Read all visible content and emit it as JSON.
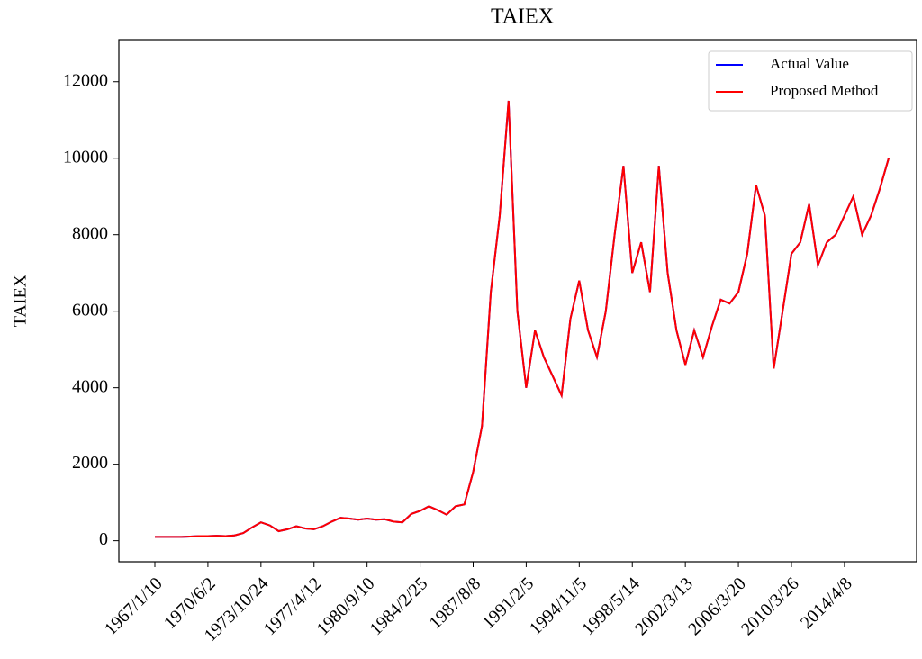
{
  "chart_data": {
    "type": "line",
    "title": "TAIEX",
    "y_label": "TAIEX",
    "categories": [
      "1967/1/10",
      null,
      null,
      null,
      null,
      null,
      "1970/6/2",
      null,
      null,
      null,
      null,
      null,
      "1973/10/24",
      null,
      null,
      null,
      null,
      null,
      "1977/4/12",
      null,
      null,
      null,
      null,
      null,
      "1980/9/10",
      null,
      null,
      null,
      null,
      null,
      "1984/2/25",
      null,
      null,
      null,
      null,
      null,
      "1987/8/8",
      null,
      null,
      null,
      null,
      null,
      "1991/2/5",
      null,
      null,
      null,
      null,
      null,
      "1994/11/5",
      null,
      null,
      null,
      null,
      null,
      "1998/5/14",
      null,
      null,
      null,
      null,
      null,
      "2002/3/13",
      null,
      null,
      null,
      null,
      null,
      "2006/3/20",
      null,
      null,
      null,
      null,
      null,
      "2010/3/26",
      null,
      null,
      null,
      null,
      null,
      "2014/4/8",
      null,
      null,
      null,
      null,
      null
    ],
    "series": [
      {
        "name": "Actual Value",
        "color": "#0000ff",
        "values": [
          100,
          100,
          100,
          100,
          110,
          120,
          120,
          130,
          120,
          140,
          200,
          350,
          480,
          400,
          250,
          300,
          380,
          320,
          300,
          380,
          500,
          600,
          580,
          550,
          580,
          550,
          560,
          500,
          480,
          700,
          780,
          900,
          800,
          680,
          900,
          950,
          1800,
          3000,
          6500,
          8500,
          11500,
          6000,
          4000,
          5500,
          4800,
          4300,
          3800,
          5800,
          6800,
          5500,
          4800,
          6000,
          8000,
          9800,
          7000,
          7800,
          6500,
          9800,
          7000,
          5500,
          4600,
          5500,
          4800,
          5600,
          6300,
          6200,
          6500,
          7500,
          9300,
          8500,
          4500,
          6000,
          7500,
          7800,
          8800,
          7200,
          7800,
          8000,
          8500,
          9000,
          8000,
          8500,
          9200,
          10000
        ]
      },
      {
        "name": "Proposed Method",
        "color": "#ff0000",
        "values": [
          100,
          100,
          100,
          100,
          110,
          120,
          120,
          130,
          120,
          140,
          200,
          350,
          480,
          400,
          250,
          300,
          380,
          320,
          300,
          380,
          500,
          600,
          580,
          550,
          580,
          550,
          560,
          500,
          480,
          700,
          780,
          900,
          800,
          680,
          900,
          950,
          1800,
          3000,
          6500,
          8500,
          11500,
          6000,
          4000,
          5500,
          4800,
          4300,
          3800,
          5800,
          6800,
          5500,
          4800,
          6000,
          8000,
          9800,
          7000,
          7800,
          6500,
          9800,
          7000,
          5500,
          4600,
          5500,
          4800,
          5600,
          6300,
          6200,
          6500,
          7500,
          9300,
          8500,
          4500,
          6000,
          7500,
          7800,
          8800,
          7200,
          7800,
          8000,
          8500,
          9000,
          8000,
          8500,
          9200,
          10000
        ]
      }
    ],
    "ylim": [
      -550,
      13100
    ],
    "yticks": [
      0,
      2000,
      4000,
      6000,
      8000,
      10000,
      12000
    ],
    "legend": "upper right"
  }
}
